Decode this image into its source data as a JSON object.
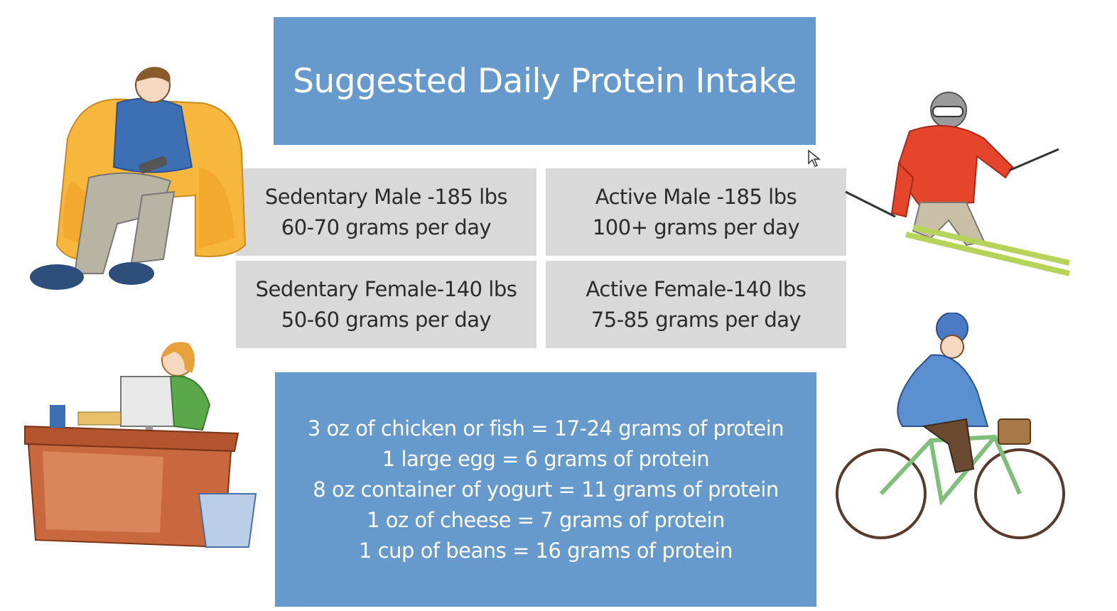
{
  "title": "Suggested Daily Protein Intake",
  "categories": [
    {
      "line1": "Sedentary Male -185 lbs",
      "line2": "60-70 grams per day"
    },
    {
      "line1": "Active Male -185 lbs",
      "line2": "100+ grams per day"
    },
    {
      "line1": "Sedentary Female-140 lbs",
      "line2": "50-60 grams per day"
    },
    {
      "line1": "Active Female-140 lbs",
      "line2": "75-85 grams per day"
    }
  ],
  "facts": [
    "3 oz of chicken or fish  = 17-24 grams of protein",
    "1 large egg =  6 grams of protein",
    "8 oz container of yogurt = 11 grams of protein",
    "1 oz of cheese = 7 grams of protein",
    "1 cup of beans = 16 grams of protein"
  ],
  "colors": {
    "box_blue": "#6699cc",
    "cell_gray": "#d9d9d9"
  },
  "illustrations": [
    "man-in-armchair",
    "skier",
    "woman-at-desk",
    "cyclist"
  ]
}
